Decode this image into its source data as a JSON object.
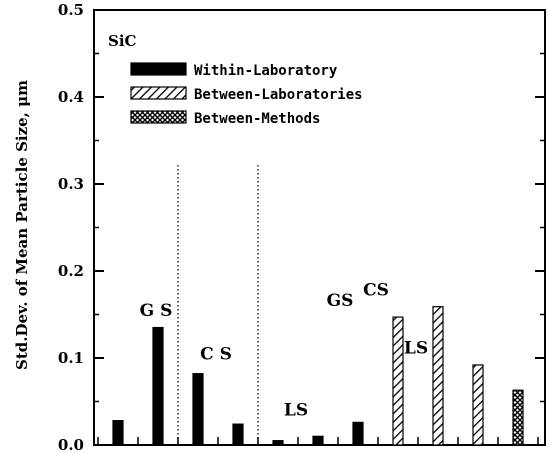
{
  "chart_data": {
    "type": "bar",
    "ylabel": "Std.Dev. of Mean Particle Size, μm",
    "ylim": [
      0,
      0.5
    ],
    "yticks": [
      "0.0",
      "0.1",
      "0.2",
      "0.3",
      "0.4",
      "0.5"
    ],
    "material": "SiC",
    "grid": false,
    "legend_placement": "top-left",
    "series": [
      {
        "name": "Within-Laboratory",
        "pattern": "solid"
      },
      {
        "name": "Between-Laboratories",
        "pattern": "hatch"
      },
      {
        "name": "Between-Methods",
        "pattern": "crosshatch"
      }
    ],
    "bars": [
      {
        "series": 0,
        "group": "GS",
        "value": 0.028
      },
      {
        "series": 0,
        "group": "GS",
        "value": 0.135
      },
      {
        "series": 0,
        "group": "CS",
        "value": 0.082
      },
      {
        "series": 0,
        "group": "CS",
        "value": 0.024
      },
      {
        "series": 0,
        "group": "LS",
        "value": 0.005
      },
      {
        "series": 0,
        "group": "LS",
        "value": 0.01
      },
      {
        "series": 0,
        "group": "LS",
        "value": 0.026
      },
      {
        "series": 1,
        "group": "GS",
        "value": 0.147
      },
      {
        "series": 1,
        "group": "CS",
        "value": 0.159
      },
      {
        "series": 1,
        "group": "LS",
        "value": 0.092
      },
      {
        "series": 2,
        "group": "",
        "value": 0.063
      }
    ],
    "annotations": [
      {
        "text": "G S",
        "x_data": 0.95,
        "y_data": 0.148
      },
      {
        "text": "C S",
        "x_data": 2.45,
        "y_data": 0.098
      },
      {
        "text": "LS",
        "x_data": 4.45,
        "y_data": 0.034
      },
      {
        "text": "GS",
        "x_data": 5.55,
        "y_data": 0.16
      },
      {
        "text": "CS",
        "x_data": 6.45,
        "y_data": 0.172
      },
      {
        "text": "LS",
        "x_data": 7.45,
        "y_data": 0.105
      }
    ],
    "bar_x": [
      0,
      1,
      2,
      3,
      4,
      5,
      6,
      7,
      8,
      9,
      10
    ],
    "separators_after": [
      1.5,
      3.5
    ]
  }
}
